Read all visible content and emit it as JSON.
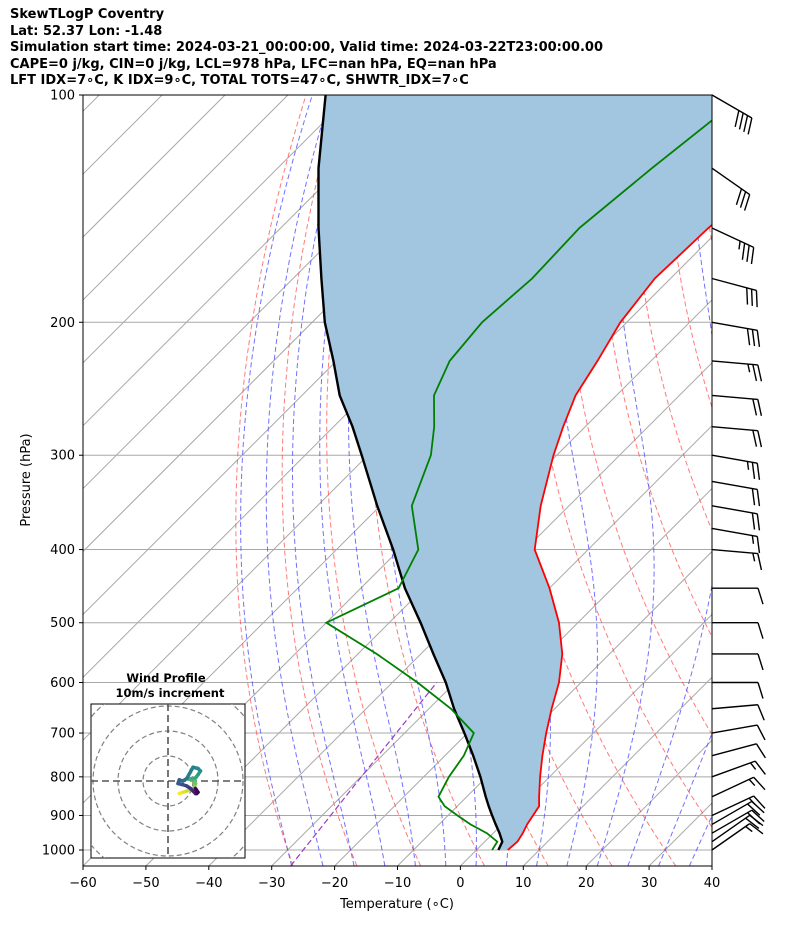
{
  "header": {
    "line1": "SkewTLogP Coventry",
    "line2": "Lat: 52.37   Lon: -1.48",
    "line3": "Simulation start time: 2024-03-21_00:00:00, Valid time: 2024-03-22T23:00:00.00",
    "line4": "CAPE=0 j/kg, CIN=0 j/kg, LCL=978 hPa, LFC=nan hPa, EQ=nan hPa",
    "line5": "LFT IDX=7∘C, K IDX=9∘C, TOTAL TOTS=47∘C, SHWTR_IDX=7∘C"
  },
  "colors": {
    "temperature": "#ff0000",
    "dewpoint": "#008000",
    "parcel": "#000000",
    "cape_fill": "#a2c5e0",
    "dry_adiabat": "#ff4d4d",
    "moist_adiabat": "#4d4dff",
    "mixing_ratio": "#9b3bc6",
    "isotherm": "#a8a8a8"
  },
  "chart_data": [
    {
      "type": "line",
      "subtype": "skew-T log-P diagram",
      "xlabel": "Temperature (∘C)",
      "ylabel": "Pressure (hPa)",
      "xlim": [
        -60,
        40
      ],
      "ylim": [
        1050,
        100
      ],
      "y_scale": "log",
      "grid": true,
      "x_ticks": [
        "−60",
        "−50",
        "−40",
        "−30",
        "−20",
        "−10",
        "0",
        "10",
        "20",
        "30",
        "40"
      ],
      "y_ticks": [
        "100",
        "200",
        "300",
        "400",
        "500",
        "600",
        "700",
        "800",
        "900",
        "1000"
      ],
      "pressure_levels": [
        1000,
        975,
        950,
        925,
        900,
        875,
        850,
        800,
        750,
        700,
        650,
        600,
        550,
        500,
        450,
        400,
        350,
        300,
        275,
        250,
        225,
        200,
        175,
        150,
        125,
        100
      ],
      "series": [
        {
          "key": "temperature",
          "values": [
            5.0,
            5.2,
            4.7,
            4.0,
            3.5,
            3.0,
            1.5,
            -1.5,
            -4.5,
            -7.5,
            -10.5,
            -13.5,
            -17.5,
            -23.0,
            -30.0,
            -38.5,
            -44.5,
            -50.5,
            -53.5,
            -56.5,
            -58.5,
            -61.0,
            -62.5,
            -62.0,
            -60.5,
            -58.5
          ]
        },
        {
          "key": "dewpoint",
          "values": [
            2.5,
            2.0,
            -1.0,
            -5.0,
            -8.5,
            -12.0,
            -14.5,
            -16.0,
            -17.0,
            -19.0,
            -26.5,
            -36.0,
            -47.0,
            -60.0,
            -54.0,
            -57.0,
            -65.0,
            -70.0,
            -74.0,
            -79.0,
            -82.0,
            -83.0,
            -82.0,
            -82.5,
            -80.5,
            -77.5
          ]
        },
        {
          "key": "parcel",
          "values": [
            3.5,
            2.8,
            1.0,
            -1.0,
            -3.0,
            -5.0,
            -7.0,
            -11.0,
            -15.5,
            -20.5,
            -26.0,
            -31.5,
            -38.0,
            -45.0,
            -53.0,
            -61.0,
            -70.5,
            -81.0,
            -87.0,
            -94.0,
            -100.5,
            -108.0,
            -115.5,
            -124.0,
            -133.5,
            -144.0
          ]
        }
      ],
      "wind_barbs": {
        "pressures": [
          100,
          125,
          150,
          175,
          200,
          225,
          250,
          275,
          300,
          325,
          350,
          375,
          400,
          450,
          500,
          550,
          600,
          650,
          700,
          750,
          800,
          850,
          900,
          925,
          950,
          975,
          1000
        ],
        "speed_kt": [
          40,
          30,
          35,
          30,
          30,
          25,
          20,
          20,
          25,
          20,
          20,
          15,
          15,
          10,
          10,
          10,
          10,
          10,
          10,
          10,
          15,
          15,
          15,
          20,
          20,
          20,
          15
        ],
        "direction_deg": [
          300,
          305,
          295,
          285,
          280,
          275,
          275,
          275,
          280,
          280,
          280,
          280,
          275,
          270,
          270,
          270,
          270,
          265,
          260,
          255,
          250,
          245,
          245,
          240,
          240,
          235,
          235
        ]
      }
    },
    {
      "type": "scatter",
      "subtype": "hodograph",
      "title": "Wind Profile",
      "subtitle": "10m/s increment",
      "ring_step_ms": 10,
      "u_ms": [
        4.5,
        6.0,
        7.5,
        9.0,
        10.0,
        10.5,
        11.0,
        10.5,
        9.5,
        8.0,
        9.5,
        11.0,
        12.0,
        13.0,
        12.0,
        10.0,
        7.5,
        6.0,
        4.5,
        4.0,
        6.0,
        7.5,
        9.0,
        10.0,
        11.0,
        11.5,
        12.0,
        11.0
      ],
      "v_ms": [
        -5.0,
        -4.5,
        -4.0,
        -3.5,
        -3.0,
        -2.5,
        -1.0,
        0.5,
        0.5,
        0.8,
        1.0,
        1.2,
        2.5,
        4.0,
        5.0,
        5.5,
        1.0,
        0.0,
        0.5,
        -1.0,
        -1.5,
        -2.0,
        -3.0,
        -4.0,
        -5.0,
        -5.0,
        -4.5,
        -3.0
      ]
    }
  ]
}
